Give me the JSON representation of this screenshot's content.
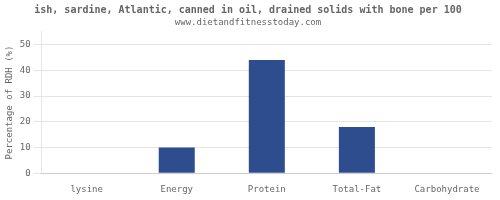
{
  "chart_data": {
    "type": "bar",
    "title": "ish, sardine, Atlantic, canned in oil, drained solids with bone per 100",
    "subtitle": "www.dietandfitnesstoday.com",
    "categories": [
      "lysine",
      "Energy",
      "Protein",
      "Total-Fat",
      "Carbohydrate"
    ],
    "values": [
      0,
      10,
      44,
      18,
      0
    ],
    "color": "#2e4d8e",
    "ylabel": "Percentage of RDH (%)",
    "ylim": [
      0,
      55
    ],
    "yticks": [
      0,
      10,
      20,
      30,
      40,
      50
    ],
    "grid": true
  }
}
